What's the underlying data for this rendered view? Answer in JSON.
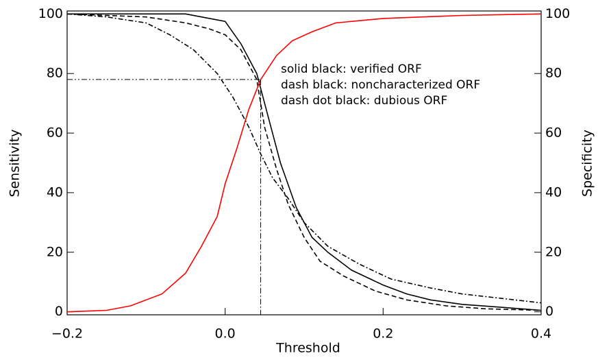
{
  "chart_data": {
    "type": "line",
    "x_label": "Threshold",
    "y_label": "Sensitivity",
    "y2_label": "Specificity",
    "annotations": [
      "solid black: verified ORF",
      "dash black: noncharacterized ORF",
      "dash dot black: dubious ORF"
    ],
    "xlim": [
      -0.2,
      0.4
    ],
    "xticks": [
      {
        "value": -0.2,
        "label": "−0.2"
      },
      {
        "value": 0,
        "label": "0.0"
      },
      0.2,
      0.4
    ],
    "ylim": [
      -1,
      101
    ],
    "yticks": [
      0,
      20,
      40,
      60,
      80,
      100
    ],
    "y2lim": [
      -1,
      101
    ],
    "y2ticks": [
      0,
      20,
      40,
      60,
      80,
      100
    ],
    "threshold_x": 0.045,
    "threshold_y": 78,
    "series": [
      {
        "name": "solid black: verified ORF",
        "color": "#000000",
        "dash": "solid",
        "x": [
          -0.2,
          -0.1,
          -0.05,
          -0.03,
          0.0,
          0.02,
          0.04,
          0.055,
          0.07,
          0.09,
          0.11,
          0.13,
          0.16,
          0.2,
          0.23,
          0.26,
          0.3,
          0.35,
          0.4
        ],
        "values": [
          100,
          100,
          100,
          99,
          97.5,
          90,
          80,
          65,
          50,
          35,
          25,
          20,
          14,
          9,
          6,
          4,
          2.5,
          1.5,
          0.5
        ]
      },
      {
        "name": "dash black: noncharacterized ORF",
        "color": "#000000",
        "dash": "dashed",
        "x": [
          -0.2,
          -0.1,
          -0.05,
          -0.02,
          0.0,
          0.02,
          0.04,
          0.05,
          0.065,
          0.08,
          0.1,
          0.12,
          0.15,
          0.19,
          0.23,
          0.28,
          0.33,
          0.4
        ],
        "values": [
          100,
          99,
          97,
          95,
          93,
          88,
          78,
          62,
          48,
          36,
          25,
          17,
          12,
          7,
          4,
          2,
          1,
          0.5
        ]
      },
      {
        "name": "dash dot black: dubious ORF",
        "color": "#000000",
        "dash": "dashdot",
        "x": [
          -0.2,
          -0.15,
          -0.1,
          -0.07,
          -0.04,
          -0.01,
          0.01,
          0.03,
          0.045,
          0.06,
          0.08,
          0.1,
          0.13,
          0.17,
          0.21,
          0.26,
          0.3,
          0.35,
          0.4
        ],
        "values": [
          100,
          99,
          97,
          93,
          88,
          80,
          72,
          62,
          53,
          45,
          38,
          30,
          22,
          16,
          11,
          8,
          6,
          4.5,
          3
        ]
      },
      {
        "name": "Specificity",
        "color": "#ff0000",
        "dash": "solid",
        "axis": "y2",
        "x": [
          -0.2,
          -0.15,
          -0.12,
          -0.08,
          -0.05,
          -0.03,
          -0.01,
          0.0,
          0.015,
          0.03,
          0.045,
          0.065,
          0.085,
          0.11,
          0.14,
          0.2,
          0.3,
          0.4
        ],
        "values": [
          0,
          0.5,
          2,
          6,
          13,
          22,
          32,
          43,
          55,
          68,
          78,
          86,
          91,
          94,
          97,
          98.5,
          99.5,
          100
        ]
      }
    ]
  }
}
